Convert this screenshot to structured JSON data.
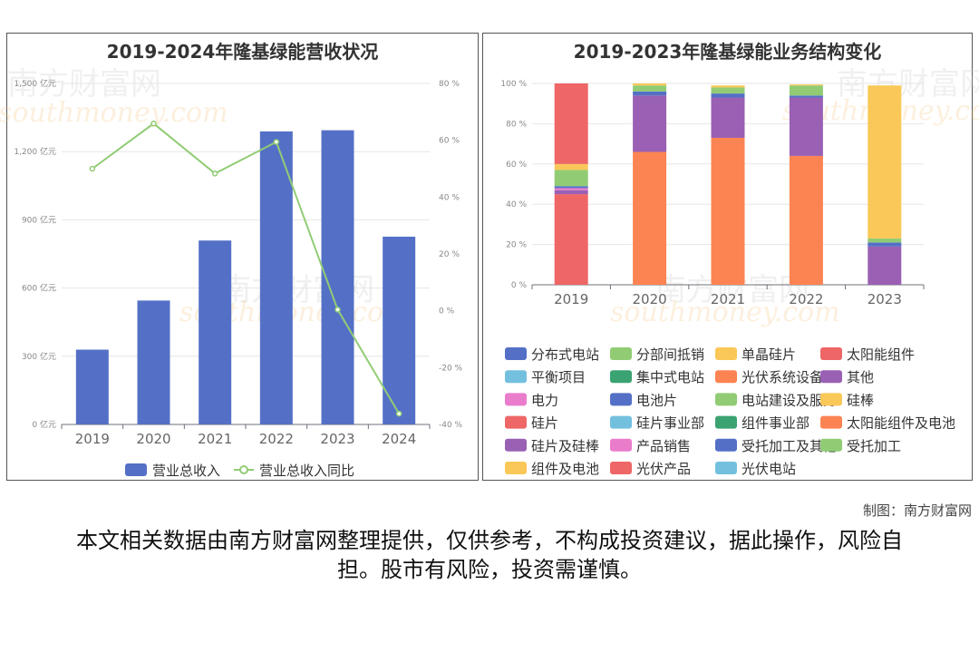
{
  "chart_data": [
    {
      "type": "bar",
      "title": "2019-2024年隆基绿能营收状况",
      "categories": [
        "2019",
        "2020",
        "2021",
        "2022",
        "2023",
        "2024"
      ],
      "series": [
        {
          "name": "营业总收入",
          "kind": "bar",
          "axis": "left",
          "color": "#5470c6",
          "values": [
            329,
            545,
            809,
            1289,
            1294,
            826
          ]
        },
        {
          "name": "营业总收入同比",
          "kind": "line",
          "axis": "right",
          "color": "#91cc75",
          "values": [
            50.0,
            65.9,
            48.3,
            59.4,
            0.4,
            -36.2
          ]
        }
      ],
      "ylim": [
        0,
        1500
      ],
      "y_ticks": [
        "0 亿元",
        "300 亿元",
        "600 亿元",
        "900 亿元",
        "1,200 亿元",
        "1,500 亿元"
      ],
      "y2lim": [
        -40,
        80
      ],
      "y2_ticks": [
        "-40 %",
        "-20 %",
        "0 %",
        "20 %",
        "40 %",
        "60 %",
        "80 %"
      ],
      "grid": true,
      "legend": "bottom"
    },
    {
      "type": "bar",
      "stacked": true,
      "title": "2019-2023年隆基绿能业务结构变化",
      "categories": [
        "2019",
        "2020",
        "2021",
        "2022",
        "2023"
      ],
      "ylim": [
        0,
        100
      ],
      "y_ticks": [
        "0 %",
        "20 %",
        "40 %",
        "60 %",
        "80 %",
        "100 %"
      ],
      "grid": true,
      "legend": "bottom",
      "series": [
        {
          "name": "分布式电站",
          "color": "#5470c6",
          "values": [
            0,
            0,
            0,
            0,
            0
          ]
        },
        {
          "name": "分部间抵销",
          "color": "#91cc75",
          "values": [
            0,
            0,
            0,
            0,
            0
          ]
        },
        {
          "name": "单晶硅片",
          "color": "#fac858",
          "values": [
            0,
            0,
            0,
            0,
            0
          ]
        },
        {
          "name": "太阳能组件",
          "color": "#ee6666",
          "values": [
            45,
            0,
            0,
            0,
            0
          ]
        },
        {
          "name": "平衡项目",
          "color": "#73c0de",
          "values": [
            0,
            0,
            0,
            0,
            0
          ]
        },
        {
          "name": "集中式电站",
          "color": "#3ba272",
          "values": [
            0,
            0,
            0,
            0,
            0
          ]
        },
        {
          "name": "光伏系统设备",
          "color": "#fc8452",
          "values": [
            0,
            0,
            0,
            0,
            0
          ]
        },
        {
          "name": "其他",
          "color": "#9a60b4",
          "values": [
            2,
            0,
            0,
            0,
            0
          ]
        },
        {
          "name": "电力",
          "color": "#ea7ccc",
          "values": [
            1,
            0,
            0,
            0,
            0
          ]
        },
        {
          "name": "电池片",
          "color": "#5470c6",
          "values": [
            1,
            0,
            0,
            0,
            0
          ]
        },
        {
          "name": "电站建设及服务",
          "color": "#91cc75",
          "values": [
            8,
            0,
            0,
            0,
            0
          ]
        },
        {
          "name": "硅棒",
          "color": "#fac858",
          "values": [
            3,
            0,
            0,
            0,
            0
          ]
        },
        {
          "name": "硅片",
          "color": "#ee6666",
          "values": [
            40,
            0,
            0,
            0,
            0
          ]
        },
        {
          "name": "硅片事业部",
          "color": "#73c0de",
          "values": [
            0,
            0,
            0,
            0,
            0
          ]
        },
        {
          "name": "组件事业部",
          "color": "#3ba272",
          "values": [
            0,
            0,
            0,
            0,
            0
          ]
        },
        {
          "name": "太阳能组件及电池",
          "color": "#fc8452",
          "values": [
            0,
            66,
            73,
            64,
            0
          ]
        },
        {
          "name": "硅片及硅棒",
          "color": "#9a60b4",
          "values": [
            0,
            28,
            20,
            29,
            19
          ]
        },
        {
          "name": "产品销售",
          "color": "#ea7ccc",
          "values": [
            0,
            0,
            0,
            0,
            0
          ]
        },
        {
          "name": "受托加工及其他",
          "color": "#5470c6",
          "values": [
            0,
            2,
            2,
            1,
            2
          ]
        },
        {
          "name": "受托加工",
          "color": "#91cc75",
          "values": [
            0,
            3,
            3,
            5,
            2
          ]
        },
        {
          "name": "组件及电池",
          "color": "#fac858",
          "values": [
            0,
            1,
            1,
            0.5,
            76
          ]
        },
        {
          "name": "光伏产品",
          "color": "#ee6666",
          "values": [
            0,
            0,
            0,
            0,
            0
          ]
        },
        {
          "name": "光伏电站",
          "color": "#73c0de",
          "values": [
            0,
            0,
            0,
            0,
            0
          ]
        }
      ]
    }
  ],
  "credit": "制图：南方财富网",
  "disclaimer": "本文相关数据由南方财富网整理提供，仅供参考，不构成投资建议，据此操作，风险自担。股市有风险，投资需谨慎。",
  "watermark": {
    "cn": "南方财富网",
    "en": "southmoney.com"
  }
}
